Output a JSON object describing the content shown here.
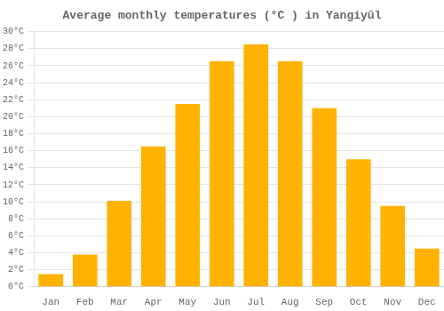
{
  "chart_data": {
    "type": "bar",
    "title": "Average monthly temperatures (°C ) in Yangiyūl",
    "categories": [
      "Jan",
      "Feb",
      "Mar",
      "Apr",
      "May",
      "Jun",
      "Jul",
      "Aug",
      "Sep",
      "Oct",
      "Nov",
      "Dec"
    ],
    "values": [
      1.5,
      3.8,
      10.1,
      16.5,
      21.5,
      26.5,
      28.5,
      26.5,
      21.0,
      15.0,
      9.5,
      4.5
    ],
    "color": "#FFB300",
    "ylim": [
      0,
      30
    ],
    "yticks": [
      {
        "value": 0,
        "label": "0°C"
      },
      {
        "value": 2,
        "label": "2°C"
      },
      {
        "value": 4,
        "label": "4°C"
      },
      {
        "value": 6,
        "label": "6°C"
      },
      {
        "value": 8,
        "label": "8°C"
      },
      {
        "value": 10,
        "label": "10°C"
      },
      {
        "value": 12,
        "label": "12°C"
      },
      {
        "value": 14,
        "label": "14°C"
      },
      {
        "value": 16,
        "label": "16°C"
      },
      {
        "value": 18,
        "label": "18°C"
      },
      {
        "value": 20,
        "label": "20°C"
      },
      {
        "value": 22,
        "label": "22°C"
      },
      {
        "value": 24,
        "label": "24°C"
      },
      {
        "value": 26,
        "label": "26°C"
      },
      {
        "value": 28,
        "label": "28°C"
      },
      {
        "value": 30,
        "label": "30°C"
      }
    ],
    "grid": true
  }
}
